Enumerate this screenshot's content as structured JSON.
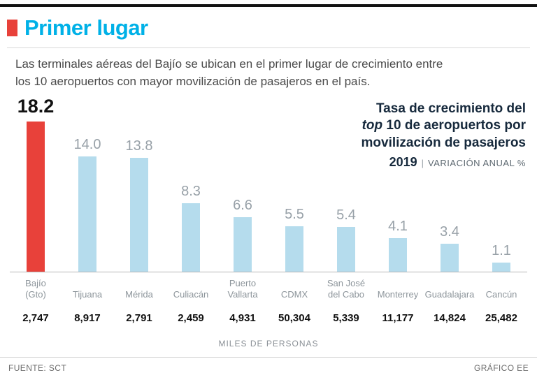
{
  "header": {
    "title": "Primer lugar",
    "description_line1": "Las terminales aéreas del Bajío se ubican en el primer lugar de crecimiento entre",
    "description_line2": "los 10 aeropuertos con mayor movilización de pasajeros en el país."
  },
  "annotation": {
    "line1": "Tasa de crecimiento del",
    "line2_italic": "top",
    "line2_rest": " 10 de aeropuertos por",
    "line3": "movilización de pasajeros",
    "year": "2019",
    "separator": "|",
    "unit": "VARIACIÓN ANUAL %"
  },
  "chart_data": {
    "type": "bar",
    "title": "Tasa de crecimiento del top 10 de aeropuertos por movilización de pasajeros, 2019, variación anual %",
    "categories": [
      "Bajío (Gto)",
      "Tijuana",
      "Mérida",
      "Culiacán",
      "Puerto Vallarta",
      "CDMX",
      "San José del Cabo",
      "Monterrey",
      "Guadalajara",
      "Cancún"
    ],
    "category_display": [
      "Bajío\n(Gto)",
      "Tijuana",
      "Mérida",
      "Culiacán",
      "Puerto\nVallarta",
      "CDMX",
      "San José\ndel Cabo",
      "Monterrey",
      "Guadalajara",
      "Cancún"
    ],
    "values": [
      18.2,
      14.0,
      13.8,
      8.3,
      6.6,
      5.5,
      5.4,
      4.1,
      3.4,
      1.1
    ],
    "value_labels": [
      "18.2",
      "14.0",
      "13.8",
      "8.3",
      "6.6",
      "5.5",
      "5.4",
      "4.1",
      "3.4",
      "1.1"
    ],
    "passengers_thousands": [
      "2,747",
      "8,917",
      "2,791",
      "2,459",
      "4,931",
      "50,304",
      "5,339",
      "11,177",
      "14,824",
      "25,482"
    ],
    "highlight_index": 0,
    "bar_color": "#b5dced",
    "highlight_color": "#e8413a",
    "ylim": [
      0,
      18.2
    ],
    "xlabel": "MILES DE PERSONAS",
    "ylabel": "variación anual %",
    "legend": "none",
    "grid": false
  },
  "footer": {
    "source": "FUENTE: SCT",
    "credit": "GRÁFICO EE"
  }
}
